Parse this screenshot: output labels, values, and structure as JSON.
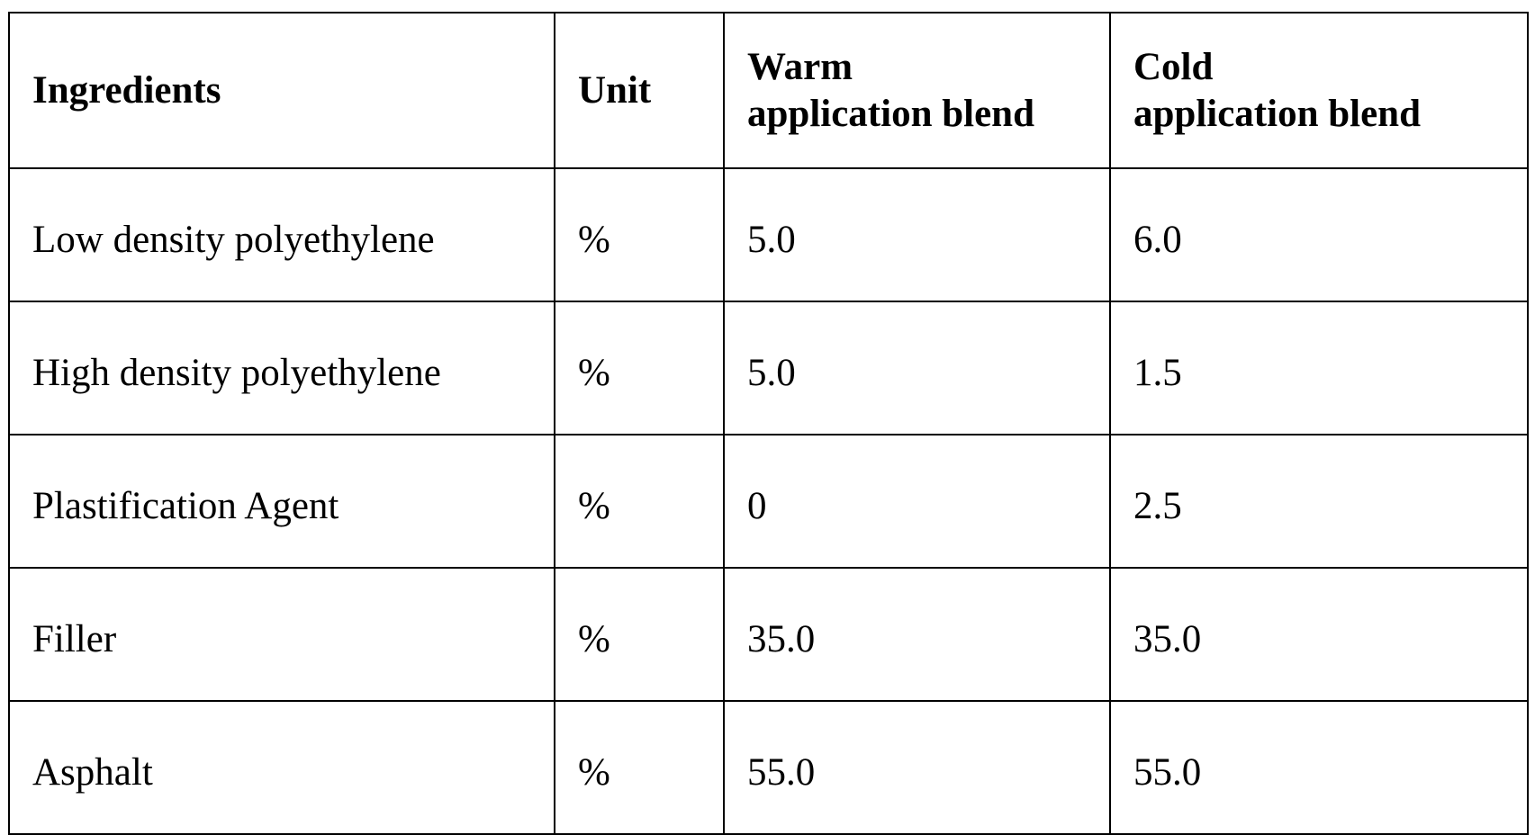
{
  "table": {
    "header": [
      "Ingredients",
      "Unit",
      "Warm\napplication blend",
      "Cold\napplication blend"
    ],
    "rows": [
      [
        "Low density polyethylene",
        "%",
        "5.0",
        "6.0"
      ],
      [
        "High density polyethylene",
        "%",
        "5.0",
        "1.5"
      ],
      [
        "Plastification Agent",
        "%",
        "0",
        "2.5"
      ],
      [
        "Filler",
        "%",
        "35.0",
        "35.0"
      ],
      [
        "Asphalt",
        "%",
        "55.0",
        "55.0"
      ]
    ]
  }
}
